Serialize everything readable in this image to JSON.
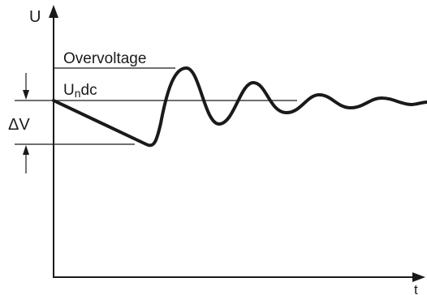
{
  "labels": {
    "y_axis": "U",
    "x_axis": "t",
    "overvoltage": "Overvoltage",
    "undc_main": "U",
    "undc_sub": "n",
    "undc_tail": "dc",
    "delta_v": "ΔV"
  },
  "colors": {
    "line": "#1a1a1a",
    "background": "#ffffff"
  }
}
